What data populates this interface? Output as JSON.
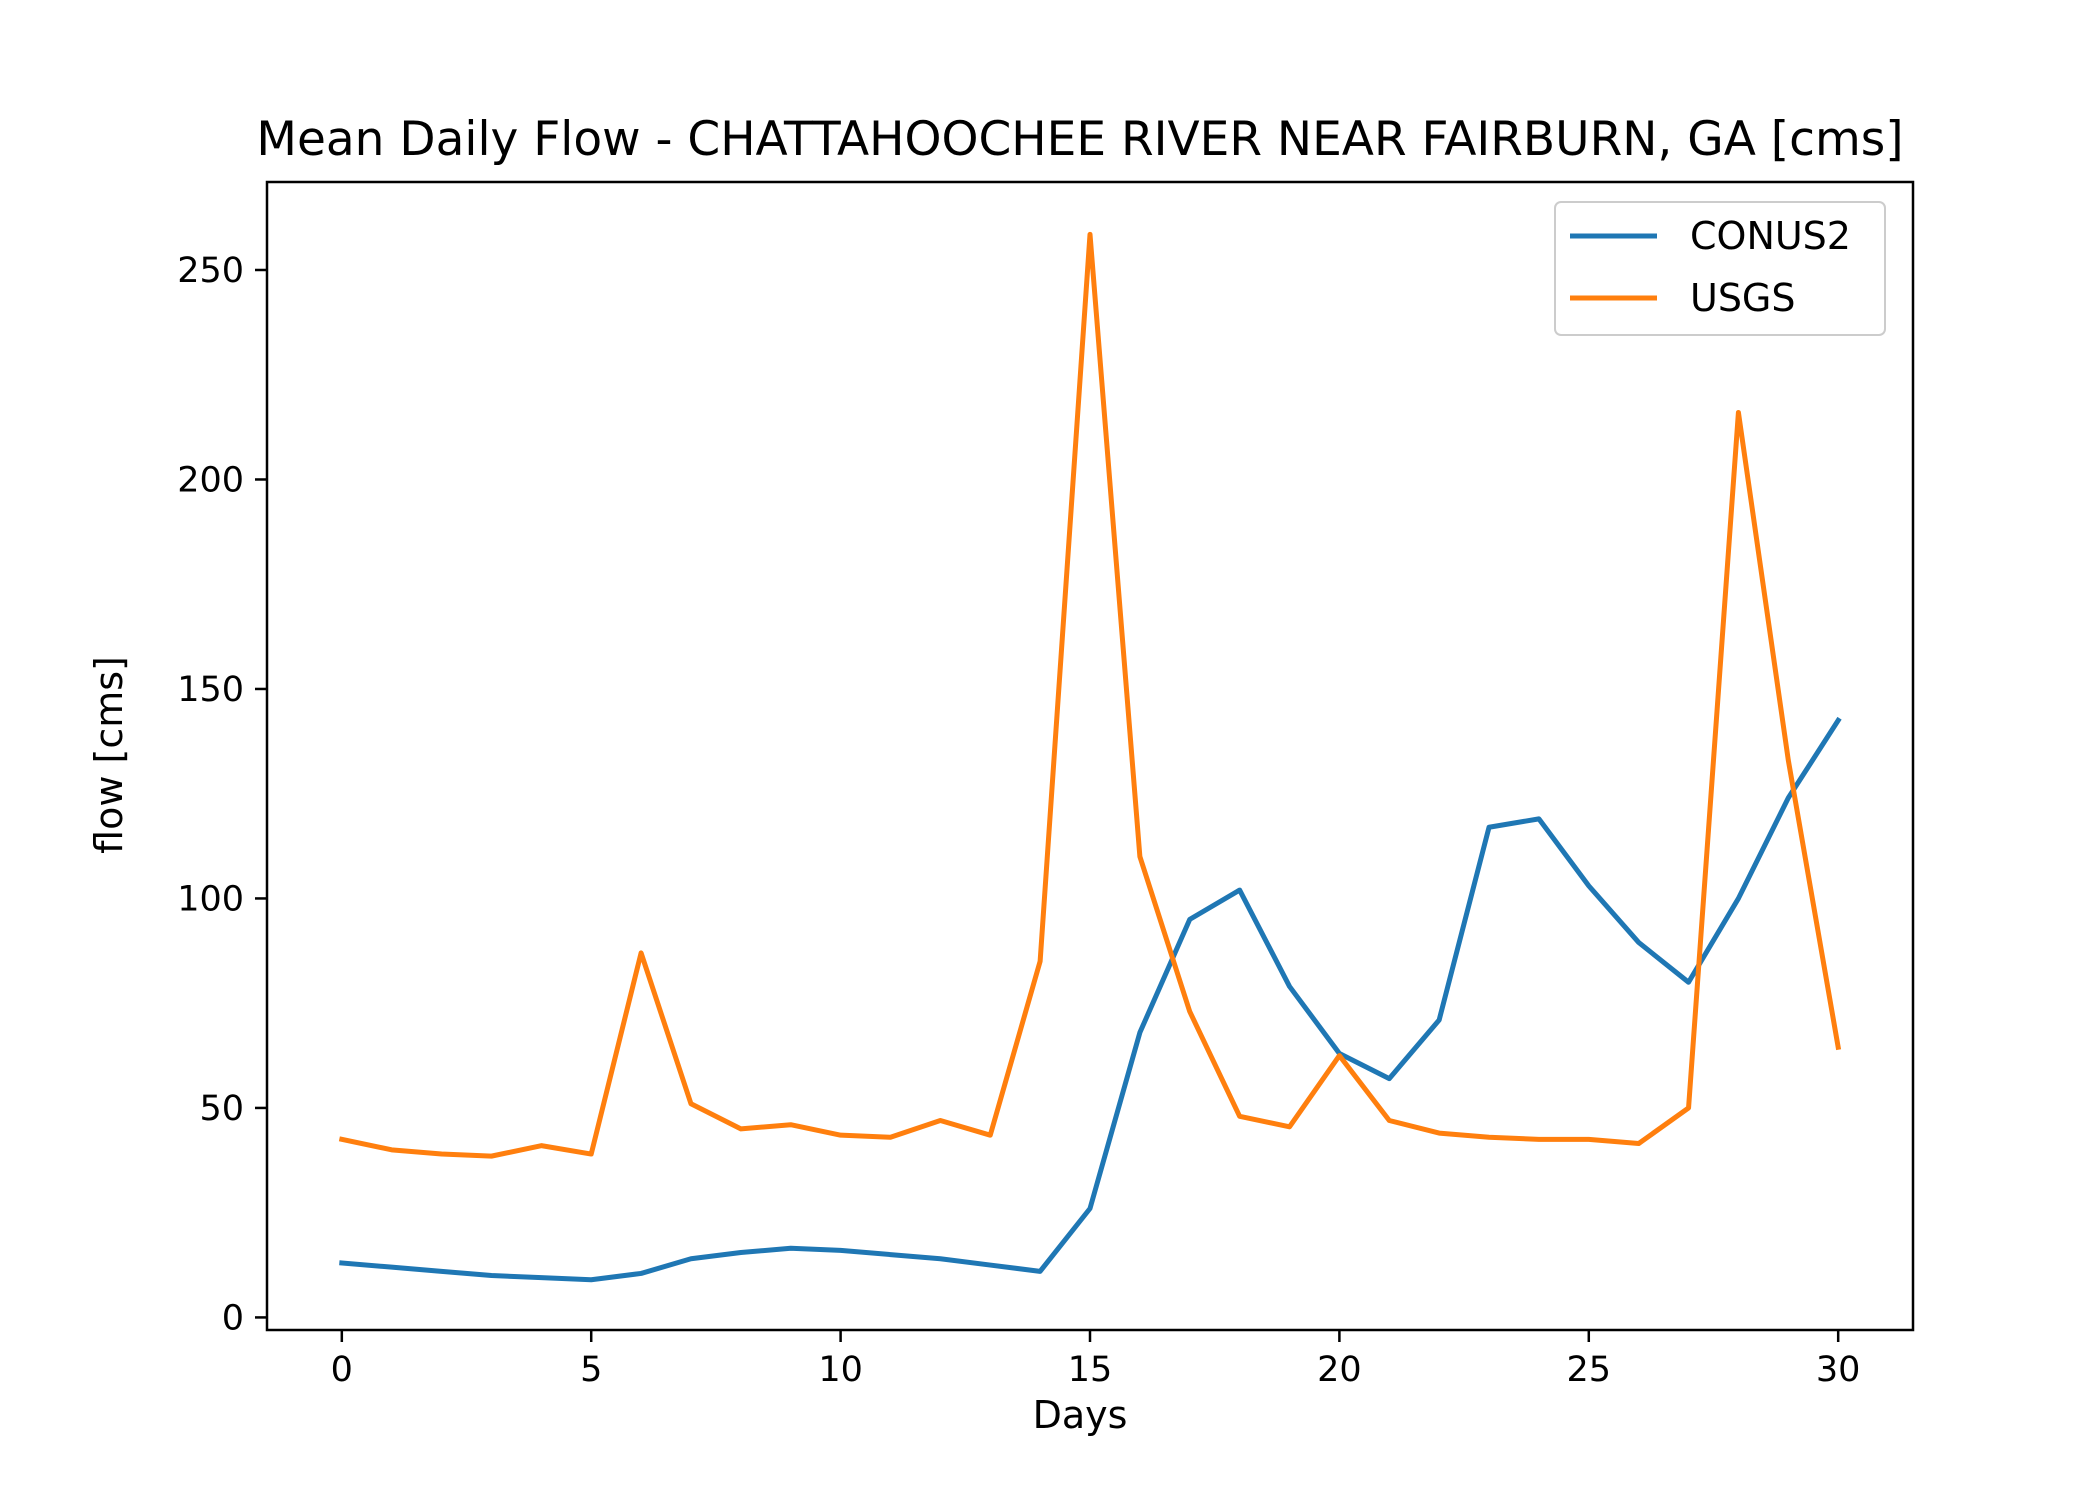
{
  "chart_data": {
    "type": "line",
    "title": "Mean Daily Flow - CHATTAHOOCHEE RIVER NEAR FAIRBURN, GA [cms]",
    "xlabel": "Days",
    "ylabel": "flow [cms]",
    "xlim": [
      -1.5,
      31.5
    ],
    "ylim": [
      -3,
      271
    ],
    "xticks": [
      0,
      5,
      10,
      15,
      20,
      25,
      30
    ],
    "yticks": [
      0,
      50,
      100,
      150,
      200,
      250
    ],
    "grid": false,
    "legend_position": "top-right",
    "x": [
      0,
      1,
      2,
      3,
      4,
      5,
      6,
      7,
      8,
      9,
      10,
      11,
      12,
      13,
      14,
      15,
      16,
      17,
      18,
      19,
      20,
      21,
      22,
      23,
      24,
      25,
      26,
      27,
      28,
      29,
      30
    ],
    "series": [
      {
        "name": "CONUS2",
        "color": "#1f77b4",
        "values": [
          13,
          12,
          11,
          10,
          9.5,
          9,
          10.5,
          14,
          15.5,
          16.5,
          16,
          15,
          14,
          12.5,
          11,
          26,
          68,
          95,
          102,
          79,
          63,
          57,
          71,
          117,
          119,
          103,
          89.5,
          80,
          100,
          124,
          142.5
        ]
      },
      {
        "name": "USGS",
        "color": "#ff7f0e",
        "values": [
          42.5,
          40,
          39,
          38.5,
          41,
          39,
          87,
          51,
          45,
          46,
          43.5,
          43,
          47,
          43.5,
          85,
          258.5,
          110,
          73,
          48,
          45.5,
          62.5,
          47,
          44,
          43,
          42.5,
          42.5,
          41.5,
          50,
          216,
          133,
          64.5
        ]
      }
    ]
  }
}
